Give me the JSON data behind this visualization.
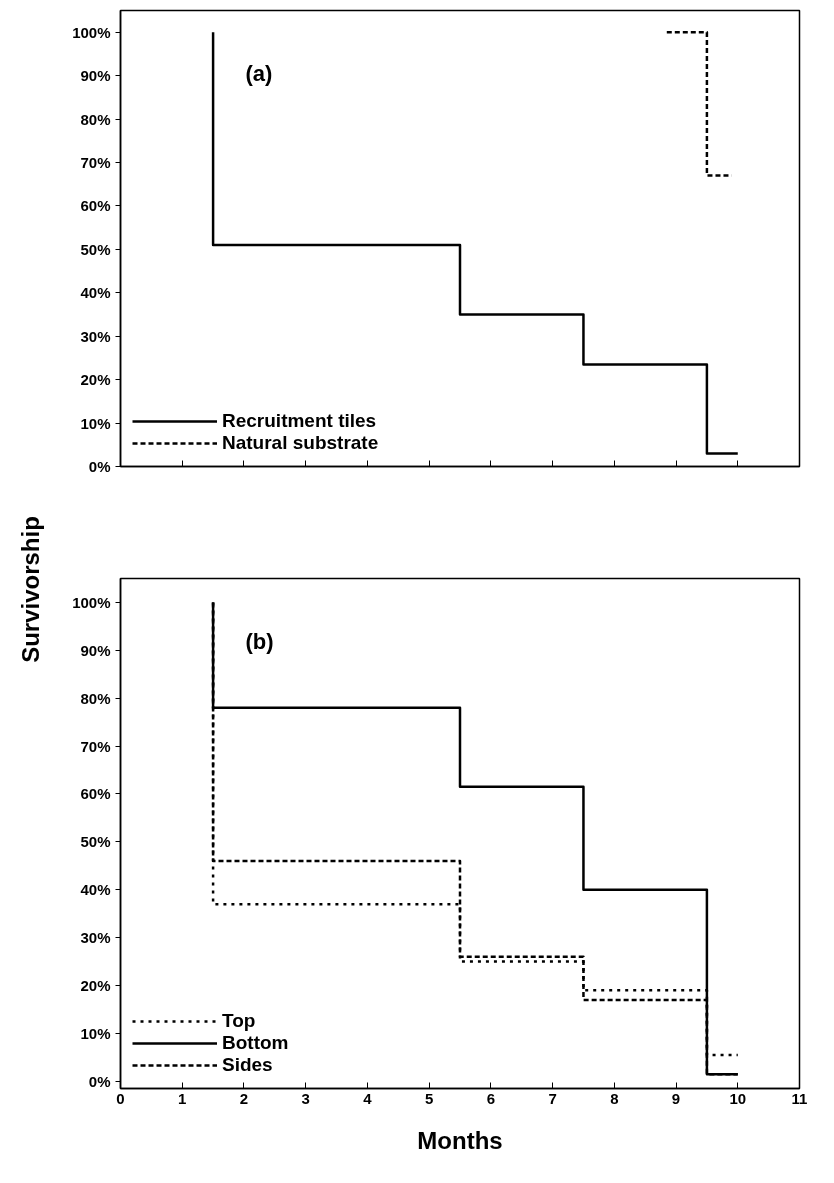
{
  "chart_data": [
    {
      "type": "step",
      "ylabel": "Survivorship",
      "annotations": [
        "(a)"
      ],
      "xlim": [
        0,
        11
      ],
      "ylim": [
        0,
        105
      ],
      "xticks": [
        0,
        1,
        2,
        3,
        4,
        5,
        6,
        7,
        8,
        9,
        10,
        11
      ],
      "yticks": [
        {
          "value": 0,
          "label": "0%"
        },
        {
          "value": 10,
          "label": "10%"
        },
        {
          "value": 20,
          "label": "20%"
        },
        {
          "value": 30,
          "label": "30%"
        },
        {
          "value": 40,
          "label": "40%"
        },
        {
          "value": 50,
          "label": "50%"
        },
        {
          "value": 60,
          "label": "60%"
        },
        {
          "value": 70,
          "label": "70%"
        },
        {
          "value": 80,
          "label": "80%"
        },
        {
          "value": 90,
          "label": "90%"
        },
        {
          "value": 100,
          "label": "100%"
        }
      ],
      "tick_labels": "y",
      "grid": false,
      "legend": "bottom left",
      "series": [
        {
          "name": "Recruitment tiles",
          "color": "#000000",
          "line_style": "solid",
          "x": [
            1.5,
            1.5,
            5.5,
            7.5,
            9.5,
            10
          ],
          "values": [
            100,
            51,
            35,
            23.5,
            3,
            3
          ]
        },
        {
          "name": "Natural substrate",
          "color": "#000000",
          "line_style": "dashed",
          "x": [
            8.85,
            9.5,
            9.9
          ],
          "values": [
            100,
            67,
            67
          ]
        }
      ]
    },
    {
      "type": "step",
      "xlabel": "Months",
      "annotations": [
        "(b)"
      ],
      "xlim": [
        0,
        11
      ],
      "ylim": [
        -1.5,
        105
      ],
      "xticks": [
        0,
        1,
        2,
        3,
        4,
        5,
        6,
        7,
        8,
        9,
        10,
        11
      ],
      "yticks": [
        {
          "value": 0,
          "label": "0%"
        },
        {
          "value": 10,
          "label": "10%"
        },
        {
          "value": 20,
          "label": "20%"
        },
        {
          "value": 30,
          "label": "30%"
        },
        {
          "value": 40,
          "label": "40%"
        },
        {
          "value": 50,
          "label": "50%"
        },
        {
          "value": 60,
          "label": "60%"
        },
        {
          "value": 70,
          "label": "70%"
        },
        {
          "value": 80,
          "label": "80%"
        },
        {
          "value": 90,
          "label": "90%"
        },
        {
          "value": 100,
          "label": "100%"
        }
      ],
      "grid": false,
      "legend": "bottom left",
      "series": [
        {
          "name": "Top",
          "color": "#000000",
          "line_style": "dotted",
          "x": [
            1.5,
            1.5,
            5.5,
            7.5,
            9.5,
            10
          ],
          "values": [
            100,
            37,
            25,
            19,
            5.5,
            5.5
          ]
        },
        {
          "name": "Bottom",
          "color": "#000000",
          "line_style": "solid",
          "x": [
            1.5,
            1.5,
            5.5,
            7.5,
            9.5,
            10
          ],
          "values": [
            100,
            78,
            61.5,
            40,
            1.5,
            1.5
          ]
        },
        {
          "name": "Sides",
          "color": "#000000",
          "line_style": "dashed",
          "x": [
            1.5,
            1.5,
            5.5,
            7.5,
            9.5,
            10
          ],
          "values": [
            100,
            46,
            26,
            17,
            1.5,
            1.5
          ]
        }
      ]
    }
  ]
}
